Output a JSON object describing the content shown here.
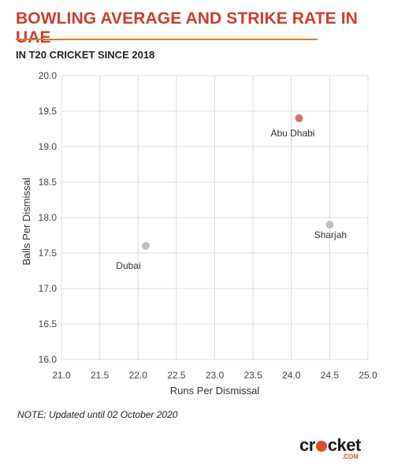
{
  "header": {
    "title": "BOWLING AVERAGE AND STRIKE RATE IN UAE",
    "subtitle": "IN T20 CRICKET SINCE 2018"
  },
  "footer": {
    "note": "NOTE: Updated until 02 October 2020",
    "logo_text_a": "cr",
    "logo_text_b": "cket",
    "logo_suffix": ".COM"
  },
  "colors": {
    "title": "#c8402e",
    "rule": "#e07a2a",
    "highlight_point": "#d9706b",
    "default_point": "#bdbdbd"
  },
  "chart_data": {
    "type": "scatter",
    "xlabel": "Runs Per Dismissal",
    "ylabel": "Balls Per Dismissal",
    "xlim": [
      21.0,
      25.0
    ],
    "ylim": [
      16.0,
      20.0
    ],
    "x_ticks": [
      "21.0",
      "21.5",
      "22.0",
      "22.5",
      "23.0",
      "23.5",
      "24.0",
      "24.5",
      "25.0"
    ],
    "y_ticks": [
      "16.0",
      "16.5",
      "17.0",
      "17.5",
      "18.0",
      "18.5",
      "19.0",
      "19.5",
      "20.0"
    ],
    "grid": true,
    "points": [
      {
        "label": "Abu Dhabi",
        "x": 24.1,
        "y": 19.4,
        "highlight": true
      },
      {
        "label": "Sharjah",
        "x": 24.5,
        "y": 17.9,
        "highlight": false
      },
      {
        "label": "Dubai",
        "x": 22.1,
        "y": 17.6,
        "highlight": false
      }
    ]
  }
}
